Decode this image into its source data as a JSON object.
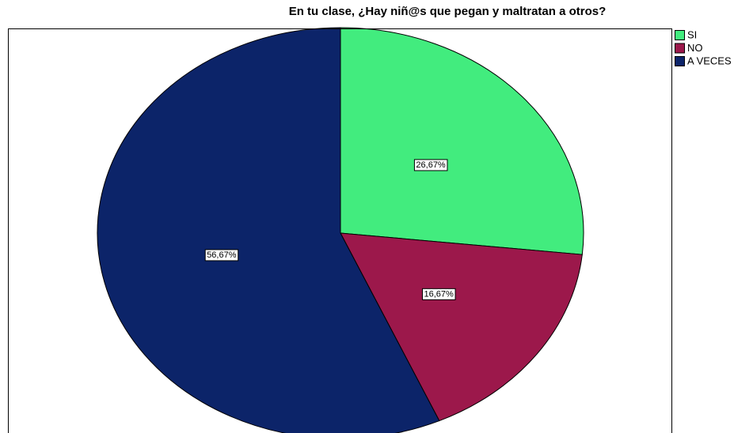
{
  "chart_data": {
    "type": "pie",
    "title": "En tu clase, ¿Hay niñ@s que pegan y maltratan a otros?",
    "categories": [
      "SI",
      "NO",
      "A VECES"
    ],
    "values": [
      26.67,
      16.67,
      56.67
    ],
    "value_labels": [
      "26,67%",
      "16,67%",
      "56,67%"
    ],
    "colors": [
      "#42ec7e",
      "#9c184b",
      "#0c2469"
    ]
  }
}
